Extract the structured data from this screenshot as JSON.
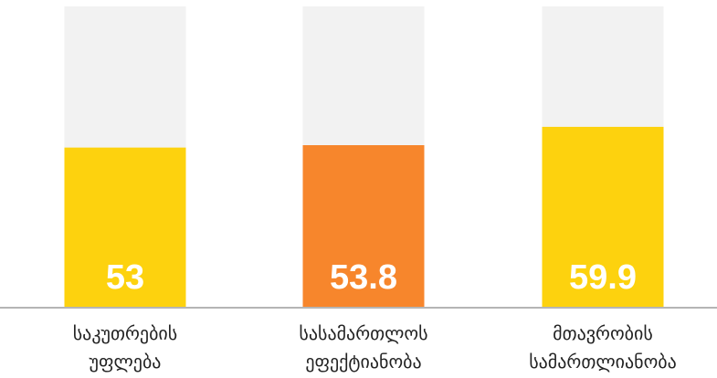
{
  "chart_data": {
    "type": "bar",
    "title": "",
    "xlabel": "",
    "ylabel": "",
    "ylim": [
      0,
      100
    ],
    "grid": false,
    "legend": "none",
    "categories": [
      [
        "საკუთრების",
        "უფლება"
      ],
      [
        "სასამართლოს",
        "ეფექტიანობა"
      ],
      [
        "მთავრობის",
        "სამართლიანობა"
      ]
    ],
    "values": [
      53,
      53.8,
      59.9
    ],
    "value_labels": [
      "53",
      "53.8",
      "59.9"
    ],
    "colors": [
      "#FDD20E",
      "#F7862C",
      "#FDD20E"
    ],
    "track_color": "#F2F2F2",
    "baseline_color": "#B5B5B5"
  }
}
